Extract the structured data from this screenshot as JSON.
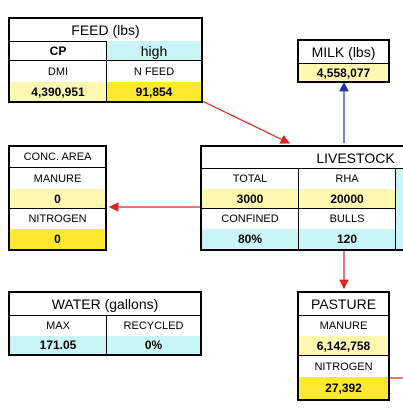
{
  "feed": {
    "title": "FEED (lbs)",
    "cp_label": "CP",
    "cp_value": "high",
    "dmi_label": "DMI",
    "n_feed_label": "N FEED",
    "dmi_value": "4,390,951",
    "n_feed_value": "91,854"
  },
  "milk": {
    "title": "MILK (lbs)",
    "value": "4,558,077"
  },
  "conc_area": {
    "title": "CONC. AREA",
    "manure_label": "MANURE",
    "manure_value": "0",
    "nitrogen_label": "NITROGEN",
    "nitrogen_value": "0"
  },
  "livestock": {
    "title": "LIVESTOCK",
    "total_label": "TOTAL",
    "rha_label": "RHA",
    "total_value": "3000",
    "rha_value": "20000",
    "confined_label": "CONFINED",
    "bulls_label": "BULLS",
    "confined_value": "80%",
    "bulls_value": "120"
  },
  "water": {
    "title": "WATER (gallons)",
    "max_label": "MAX",
    "recycled_label": "RECYCLED",
    "max_value": "171.05",
    "recycled_value": "0%"
  },
  "pasture": {
    "title": "PASTURE",
    "manure_label": "MANURE",
    "manure_value": "6,142,758",
    "nitrogen_label": "NITROGEN",
    "nitrogen_value": "27,392"
  },
  "colors": {
    "red_arrow": "#dd2222",
    "blue_arrow": "#2233aa",
    "light_yellow": "#fff8b0",
    "yellow": "#ffe830",
    "cyan": "#c9f5f7"
  }
}
